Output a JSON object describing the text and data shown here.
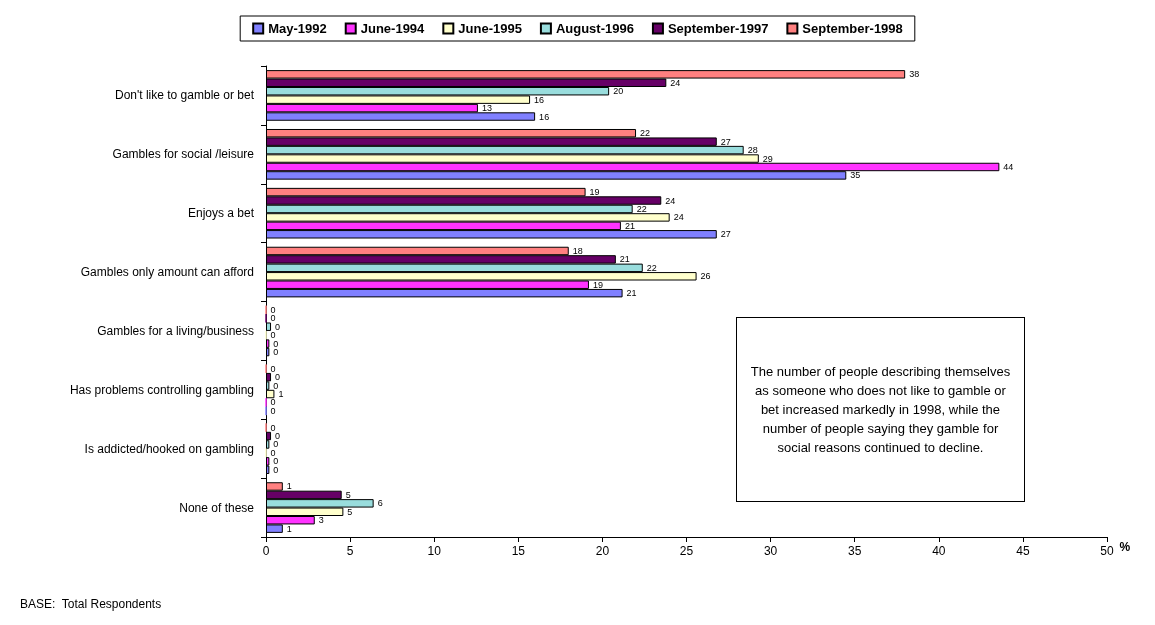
{
  "chart_data": {
    "type": "bar",
    "orientation": "horizontal",
    "xlabel": "%",
    "categories": [
      "Don't like to gamble or bet",
      "Gambles for social /leisure",
      "Enjoys a bet",
      "Gambles only amount can afford",
      "Gambles for a living/business",
      "Has problems controlling gambling",
      "Is addicted/hooked on gambling",
      "None of these"
    ],
    "series": [
      {
        "name": "May-1992",
        "color": "#8080ff",
        "values": [
          16,
          34.5,
          26.8,
          21.2,
          0.2,
          0,
          0.2,
          1
        ],
        "value_labels": [
          "16",
          "35",
          "27",
          "21",
          "0",
          "0",
          "0",
          "1"
        ]
      },
      {
        "name": "June-1994",
        "color": "#ff33ff",
        "values": [
          12.6,
          43.6,
          21.1,
          19.2,
          0.2,
          0,
          0.2,
          2.9
        ],
        "value_labels": [
          "13",
          "44",
          "21",
          "19",
          "0",
          "0",
          "0",
          "3"
        ]
      },
      {
        "name": "June-1995",
        "color": "#ffffcc",
        "values": [
          15.7,
          29.3,
          24,
          25.6,
          0,
          0.5,
          0,
          4.6
        ],
        "value_labels": [
          "16",
          "29",
          "24",
          "26",
          "0",
          "1",
          "0",
          "5"
        ]
      },
      {
        "name": "August-1996",
        "color": "#99dddd",
        "values": [
          20.4,
          28.4,
          21.8,
          22.4,
          0.3,
          0.2,
          0.2,
          6.4
        ],
        "value_labels": [
          "20",
          "28",
          "22",
          "22",
          "0",
          "0",
          "0",
          "6"
        ]
      },
      {
        "name": "September-1997",
        "color": "#660066",
        "values": [
          23.8,
          26.8,
          23.5,
          20.8,
          0,
          0.3,
          0.3,
          4.5
        ],
        "value_labels": [
          "24",
          "27",
          "24",
          "21",
          "0",
          "0",
          "0",
          "5"
        ]
      },
      {
        "name": "September-1998",
        "color": "#ff8080",
        "values": [
          38,
          22,
          19,
          18,
          0,
          0,
          0,
          1
        ],
        "value_labels": [
          "38",
          "22",
          "19",
          "18",
          "0",
          "0",
          "0",
          "1"
        ]
      }
    ],
    "xlim": [
      0,
      50
    ],
    "xticks": [
      0,
      5,
      10,
      15,
      20,
      25,
      30,
      35,
      40,
      45,
      50
    ],
    "legend": "top",
    "grid": false,
    "annotations": [
      "The number of people describing themselves as someone who does not like to gamble or bet increased markedly in 1998, while the number of people saying they gamble for social reasons continued to decline.",
      "BASE:  Total Respondents"
    ]
  }
}
